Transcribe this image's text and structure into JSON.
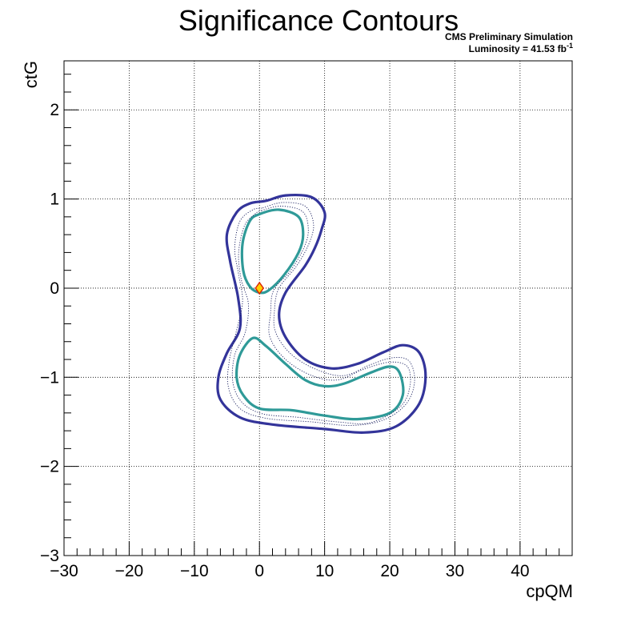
{
  "chart_data": {
    "type": "contour",
    "title": "Significance Contours",
    "header_line1": "CMS Preliminary Simulation",
    "header_line2": "Luminosity = 41.53 fb",
    "header_line2_sup": "-1",
    "xlabel": "cpQM",
    "ylabel": "ctG",
    "xlim": [
      -30,
      48
    ],
    "ylim": [
      -3,
      2.55
    ],
    "x_ticks": [
      -30,
      -20,
      -10,
      0,
      10,
      20,
      30,
      40
    ],
    "y_ticks": [
      -3,
      -2,
      -1,
      0,
      1,
      2
    ],
    "x_tick_labels": [
      "−30",
      "−20",
      "−10",
      "0",
      "10",
      "20",
      "30",
      "40"
    ],
    "y_tick_labels": [
      "−3",
      "−2",
      "−1",
      "0",
      "1",
      "2"
    ],
    "grid": true,
    "best_fit": {
      "x": 0,
      "y": 0,
      "marker": "diamond",
      "fill": "#ffd000",
      "stroke": "#dd2200"
    },
    "colors": {
      "outer": "#33349a",
      "inner": "#2f9a98",
      "dotted": "#1a2060"
    },
    "contours": [
      {
        "level": "outer",
        "style": "solid",
        "points": [
          [
            1,
            0.98
          ],
          [
            4,
            1.04
          ],
          [
            8,
            1.02
          ],
          [
            10,
            0.85
          ],
          [
            9.5,
            0.65
          ],
          [
            8.5,
            0.45
          ],
          [
            7,
            0.25
          ],
          [
            4,
            -0.05
          ],
          [
            3,
            -0.3
          ],
          [
            4,
            -0.55
          ],
          [
            7,
            -0.8
          ],
          [
            11,
            -0.9
          ],
          [
            15,
            -0.85
          ],
          [
            19,
            -0.72
          ],
          [
            22,
            -0.64
          ],
          [
            24.5,
            -0.72
          ],
          [
            25.5,
            -0.98
          ],
          [
            24.5,
            -1.3
          ],
          [
            21,
            -1.55
          ],
          [
            16,
            -1.62
          ],
          [
            10,
            -1.58
          ],
          [
            2,
            -1.53
          ],
          [
            -3,
            -1.45
          ],
          [
            -6,
            -1.25
          ],
          [
            -6.3,
            -1
          ],
          [
            -5,
            -0.73
          ],
          [
            -3,
            -0.45
          ],
          [
            -3.3,
            -0.1
          ],
          [
            -4.5,
            0.3
          ],
          [
            -5,
            0.6
          ],
          [
            -3.5,
            0.85
          ],
          [
            -1.5,
            0.95
          ]
        ]
      },
      {
        "level": "inner",
        "style": "solid",
        "points": [
          [
            0,
            0.83
          ],
          [
            3,
            0.88
          ],
          [
            6,
            0.8
          ],
          [
            6.7,
            0.6
          ],
          [
            6,
            0.4
          ],
          [
            3.8,
            0.15
          ],
          [
            1.5,
            -0.02
          ],
          [
            0,
            -0.05
          ],
          [
            -1.5,
            0.02
          ],
          [
            -2.5,
            0.2
          ],
          [
            -2.6,
            0.5
          ],
          [
            -1.5,
            0.75
          ]
        ]
      },
      {
        "level": "inner",
        "style": "solid",
        "points": [
          [
            -1,
            -0.56
          ],
          [
            1,
            -0.65
          ],
          [
            4,
            -0.85
          ],
          [
            7,
            -1.03
          ],
          [
            10,
            -1.1
          ],
          [
            13,
            -1.07
          ],
          [
            17,
            -0.95
          ],
          [
            20,
            -0.88
          ],
          [
            21.5,
            -0.95
          ],
          [
            22,
            -1.2
          ],
          [
            20,
            -1.4
          ],
          [
            15,
            -1.47
          ],
          [
            10,
            -1.43
          ],
          [
            5,
            -1.37
          ],
          [
            0,
            -1.35
          ],
          [
            -2.5,
            -1.2
          ],
          [
            -3.5,
            -1
          ],
          [
            -3,
            -0.75
          ]
        ]
      },
      {
        "level": "dotted",
        "style": "dotted",
        "points": [
          [
            0.5,
            0.9
          ],
          [
            3.5,
            0.96
          ],
          [
            7,
            0.92
          ],
          [
            8.3,
            0.72
          ],
          [
            7.6,
            0.5
          ],
          [
            5.7,
            0.25
          ],
          [
            3,
            0
          ],
          [
            2.3,
            -0.25
          ],
          [
            2.5,
            -0.5
          ],
          [
            5,
            -0.75
          ],
          [
            9,
            -0.92
          ],
          [
            13,
            -0.98
          ],
          [
            17,
            -0.86
          ],
          [
            20.5,
            -0.78
          ],
          [
            23,
            -0.82
          ],
          [
            23.8,
            -1.05
          ],
          [
            22.5,
            -1.3
          ],
          [
            19,
            -1.48
          ],
          [
            14,
            -1.54
          ],
          [
            8,
            -1.5
          ],
          [
            1,
            -1.46
          ],
          [
            -3,
            -1.35
          ],
          [
            -4.8,
            -1.1
          ],
          [
            -4.6,
            -0.8
          ],
          [
            -3.6,
            -0.5
          ],
          [
            -2.6,
            -0.15
          ],
          [
            -3.2,
            0.15
          ],
          [
            -3.8,
            0.45
          ],
          [
            -3,
            0.75
          ],
          [
            -1,
            0.88
          ]
        ]
      },
      {
        "level": "dotted",
        "style": "dotted",
        "points": [
          [
            0.3,
            0.87
          ],
          [
            3.3,
            0.92
          ],
          [
            6.6,
            0.86
          ],
          [
            7.5,
            0.66
          ],
          [
            6.8,
            0.45
          ],
          [
            4.8,
            0.2
          ],
          [
            2.2,
            -0.02
          ],
          [
            1.7,
            -0.28
          ],
          [
            1.6,
            -0.55
          ],
          [
            4,
            -0.8
          ],
          [
            8,
            -0.98
          ],
          [
            12,
            -1.03
          ],
          [
            16,
            -0.91
          ],
          [
            20,
            -0.83
          ],
          [
            22.7,
            -0.88
          ],
          [
            23.1,
            -1.1
          ],
          [
            21.6,
            -1.33
          ],
          [
            17,
            -1.51
          ],
          [
            12,
            -1.5
          ],
          [
            6,
            -1.45
          ],
          [
            0.5,
            -1.41
          ],
          [
            -2.7,
            -1.28
          ],
          [
            -4.1,
            -1.05
          ],
          [
            -3.8,
            -0.75
          ],
          [
            -2.2,
            -0.5
          ],
          [
            -1.7,
            -0.18
          ],
          [
            -2.8,
            0.1
          ],
          [
            -3.2,
            0.4
          ],
          [
            -2.3,
            0.7
          ],
          [
            -0.7,
            0.83
          ]
        ]
      }
    ]
  }
}
